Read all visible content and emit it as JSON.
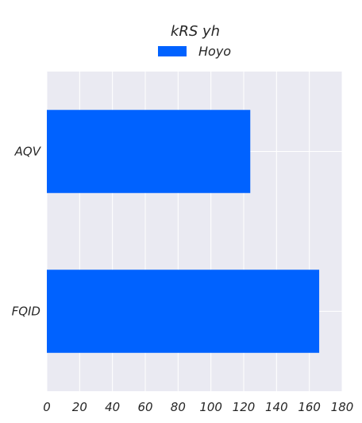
{
  "chart_data": {
    "type": "bar",
    "orientation": "horizontal",
    "title": "kRS yh",
    "xlabel": "",
    "ylabel": "",
    "categories": [
      "AQV",
      "FQID"
    ],
    "series": [
      {
        "name": "Hoyo",
        "values": [
          124,
          166
        ],
        "color": "#0062ff"
      }
    ],
    "xlim": [
      0,
      180
    ],
    "xticks": [
      0,
      20,
      40,
      60,
      80,
      100,
      120,
      140,
      160,
      180
    ],
    "grid": true,
    "legend_position": "top-center",
    "background_color": "#eaeaf2"
  }
}
